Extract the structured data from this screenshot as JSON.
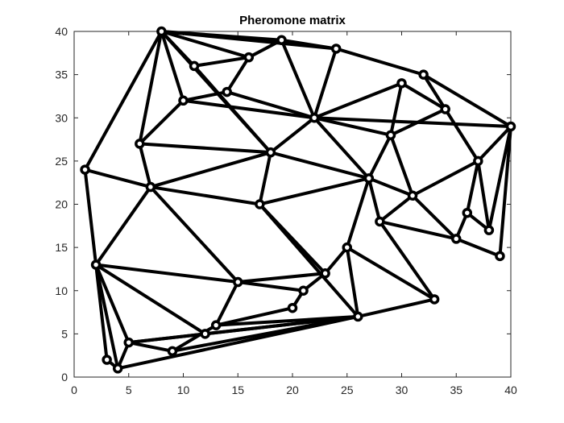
{
  "chart_data": {
    "type": "network",
    "title": "Pheromone matrix",
    "xlabel": "",
    "ylabel": "",
    "xlim": [
      0,
      40
    ],
    "ylim": [
      0,
      40
    ],
    "xticks": [
      0,
      5,
      10,
      15,
      20,
      25,
      30,
      35,
      40
    ],
    "yticks": [
      0,
      5,
      10,
      15,
      20,
      25,
      30,
      35,
      40
    ],
    "grid": false,
    "edge_color": "#000000",
    "node_color": "#000000",
    "axis_color": "#262626",
    "nodes": [
      [
        8,
        40
      ],
      [
        19,
        39
      ],
      [
        16,
        37
      ],
      [
        11,
        36
      ],
      [
        24,
        38
      ],
      [
        30,
        34
      ],
      [
        32,
        35
      ],
      [
        14,
        33
      ],
      [
        10,
        32
      ],
      [
        22,
        30
      ],
      [
        34,
        31
      ],
      [
        40,
        29
      ],
      [
        29,
        28
      ],
      [
        6,
        27
      ],
      [
        18,
        26
      ],
      [
        1,
        24
      ],
      [
        37,
        25
      ],
      [
        27,
        23
      ],
      [
        7,
        22
      ],
      [
        31,
        21
      ],
      [
        17,
        20
      ],
      [
        36,
        19
      ],
      [
        28,
        18
      ],
      [
        38,
        17
      ],
      [
        35,
        16
      ],
      [
        25,
        15
      ],
      [
        39,
        14
      ],
      [
        2,
        13
      ],
      [
        23,
        12
      ],
      [
        15,
        11
      ],
      [
        21,
        10
      ],
      [
        33,
        9
      ],
      [
        20,
        8
      ],
      [
        26,
        7
      ],
      [
        13,
        6
      ],
      [
        12,
        5
      ],
      [
        5,
        4
      ],
      [
        9,
        3
      ],
      [
        3,
        2
      ],
      [
        4,
        1
      ]
    ],
    "edges": [
      [
        0,
        2
      ],
      [
        0,
        4
      ],
      [
        0,
        3
      ],
      [
        0,
        8
      ],
      [
        0,
        13
      ],
      [
        0,
        15
      ],
      [
        0,
        14
      ],
      [
        0,
        1
      ],
      [
        1,
        2
      ],
      [
        1,
        9
      ],
      [
        1,
        4
      ],
      [
        2,
        3
      ],
      [
        2,
        7
      ],
      [
        3,
        14
      ],
      [
        7,
        8
      ],
      [
        7,
        9
      ],
      [
        8,
        9
      ],
      [
        8,
        13
      ],
      [
        4,
        6
      ],
      [
        4,
        9
      ],
      [
        6,
        10
      ],
      [
        6,
        11
      ],
      [
        5,
        9
      ],
      [
        5,
        12
      ],
      [
        5,
        10
      ],
      [
        9,
        17
      ],
      [
        9,
        12
      ],
      [
        9,
        11
      ],
      [
        9,
        14
      ],
      [
        10,
        12
      ],
      [
        10,
        16
      ],
      [
        11,
        16
      ],
      [
        11,
        26
      ],
      [
        11,
        23
      ],
      [
        13,
        18
      ],
      [
        13,
        14
      ],
      [
        14,
        18
      ],
      [
        14,
        20
      ],
      [
        14,
        17
      ],
      [
        15,
        18
      ],
      [
        15,
        27
      ],
      [
        12,
        17
      ],
      [
        12,
        19
      ],
      [
        17,
        20
      ],
      [
        17,
        22
      ],
      [
        17,
        25
      ],
      [
        17,
        19
      ],
      [
        16,
        19
      ],
      [
        16,
        21
      ],
      [
        16,
        23
      ],
      [
        19,
        24
      ],
      [
        19,
        22
      ],
      [
        21,
        24
      ],
      [
        21,
        23
      ],
      [
        22,
        24
      ],
      [
        22,
        31
      ],
      [
        24,
        26
      ],
      [
        18,
        20
      ],
      [
        18,
        27
      ],
      [
        18,
        29
      ],
      [
        20,
        28
      ],
      [
        20,
        33
      ],
      [
        25,
        28
      ],
      [
        25,
        31
      ],
      [
        25,
        33
      ],
      [
        28,
        29
      ],
      [
        28,
        30
      ],
      [
        29,
        30
      ],
      [
        29,
        27
      ],
      [
        30,
        32
      ],
      [
        27,
        35
      ],
      [
        27,
        36
      ],
      [
        27,
        38
      ],
      [
        27,
        39
      ],
      [
        32,
        34
      ],
      [
        29,
        34
      ],
      [
        31,
        33
      ],
      [
        33,
        35
      ],
      [
        33,
        34
      ],
      [
        33,
        37
      ],
      [
        33,
        39
      ],
      [
        33,
        36
      ],
      [
        36,
        35
      ],
      [
        36,
        39
      ],
      [
        36,
        37
      ],
      [
        37,
        34
      ],
      [
        38,
        39
      ]
    ]
  }
}
